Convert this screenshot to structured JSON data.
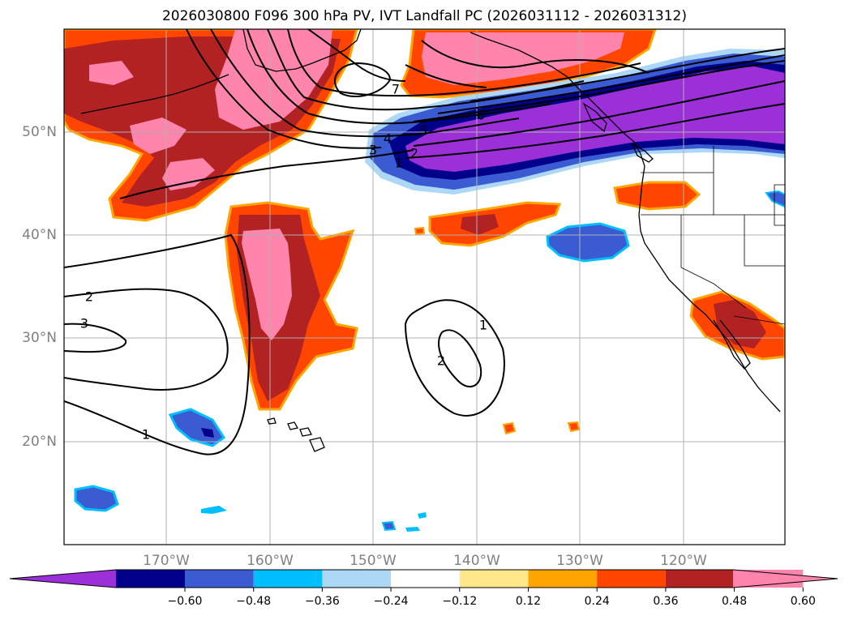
{
  "title": "2026030800 F096 300 hPa PV, IVT Landfall PC (2026031112 - 2026031312)",
  "map": {
    "lat_labels": [
      "50°N",
      "40°N",
      "30°N",
      "20°N"
    ],
    "lon_labels": [
      "170°W",
      "160°W",
      "150°W",
      "140°W",
      "130°W",
      "120°W"
    ],
    "contour_labels": [
      "1",
      "2",
      "3",
      "1",
      "2",
      "3",
      "4",
      "5",
      "6",
      "1",
      "2",
      "1",
      "7"
    ]
  },
  "colorbar": {
    "ticks": [
      "−0.60",
      "−0.48",
      "−0.36",
      "−0.24",
      "−0.12",
      "0.12",
      "0.24",
      "0.36",
      "0.48",
      "0.60"
    ],
    "colors": [
      "#9b30d9",
      "#00008b",
      "#3a5bd1",
      "#00bfff",
      "#add8f5",
      "#ffffff",
      "#ffe88a",
      "#ffa500",
      "#ff4500",
      "#b22222",
      "#ff85ad",
      "#ff85ad"
    ]
  },
  "colors": {
    "purple": "#9b30d9",
    "navy": "#00008b",
    "blue": "#3a5bd1",
    "cyan": "#00bfff",
    "lightblue": "#add8f5",
    "yellow": "#ffe88a",
    "orange": "#ffa500",
    "redorange": "#ff4500",
    "darkred": "#b22222",
    "pink": "#ff85ad"
  }
}
